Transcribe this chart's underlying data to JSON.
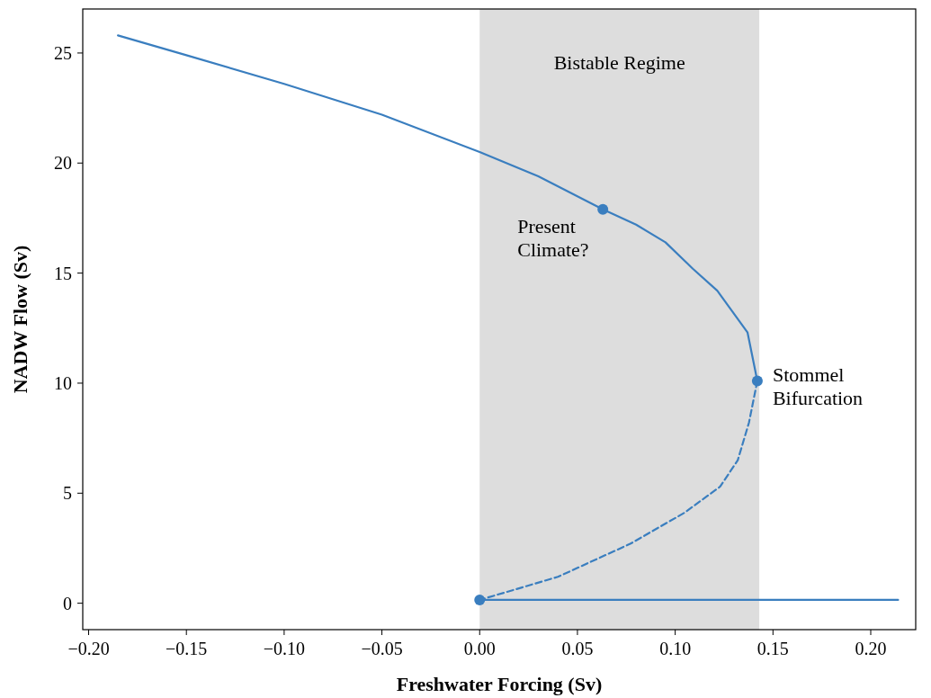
{
  "chart_data": {
    "type": "line",
    "xlabel": "Freshwater Forcing (Sv)",
    "ylabel": "NADW Flow (Sv)",
    "xlim": [
      -0.203,
      0.223
    ],
    "ylim": [
      -1.2,
      27
    ],
    "xticks": [
      {
        "value": -0.2,
        "label": "−0.20"
      },
      {
        "value": -0.15,
        "label": "−0.15"
      },
      {
        "value": -0.1,
        "label": "−0.10"
      },
      {
        "value": -0.05,
        "label": "−0.05"
      },
      {
        "value": 0,
        "label": "0.00"
      },
      {
        "value": 0.05,
        "label": "0.05"
      },
      {
        "value": 0.1,
        "label": "0.10"
      },
      {
        "value": 0.15,
        "label": "0.15"
      },
      {
        "value": 0.2,
        "label": "0.20"
      }
    ],
    "yticks": [
      0,
      5,
      10,
      15,
      20,
      25
    ],
    "grid": false,
    "bands": [
      {
        "axis": "x",
        "from": 0,
        "to": 0.143,
        "label": "Bistable Regime",
        "color": "#dddddd"
      }
    ],
    "series": [
      {
        "color": "#3a7ebf",
        "line_style": "solid",
        "x": [
          -0.185,
          -0.15,
          -0.1,
          -0.05,
          0,
          0.03,
          0.063,
          0.08,
          0.095,
          0.109,
          0.1215,
          0.137,
          0.142
        ],
        "values": [
          25.8,
          24.9,
          23.6,
          22.2,
          20.5,
          19.4,
          17.9,
          17.2,
          16.4,
          15.2,
          14.2,
          12.3,
          10.1
        ]
      },
      {
        "color": "#3a7ebf",
        "line_style": "dashed",
        "x": [
          0.142,
          0.1377,
          0.132,
          0.123,
          0.1045,
          0.077,
          0.04,
          0
        ],
        "values": [
          10.1,
          8.2,
          6.5,
          5.3,
          4.1,
          2.7,
          1.2,
          0.15
        ]
      },
      {
        "color": "#3a7ebf",
        "line_style": "solid",
        "x": [
          0,
          0.214
        ],
        "values": [
          0.15,
          0.15
        ]
      },
      {
        "type": "scatter",
        "color": "#3a7ebf",
        "marker": "circle",
        "x": [
          0.063,
          0.142,
          0
        ],
        "values": [
          17.9,
          10.1,
          0.15
        ]
      }
    ],
    "annotations": [
      {
        "text": "Present\nClimate?",
        "x": 0.063,
        "y": 17.9
      },
      {
        "text": "Stommel\nBifurcation",
        "x": 0.142,
        "y": 10.1
      }
    ]
  }
}
